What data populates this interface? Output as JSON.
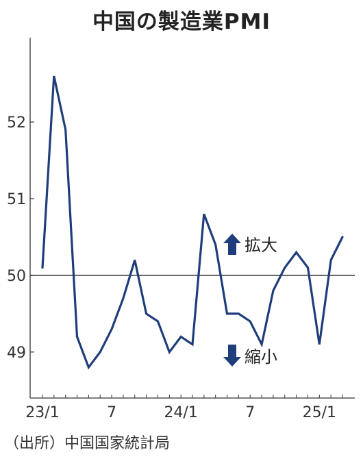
{
  "chart_data": {
    "type": "line",
    "title": "中国の製造業PMI",
    "x": [
      "23/1",
      "23/2",
      "23/3",
      "23/4",
      "23/5",
      "23/6",
      "23/7",
      "23/8",
      "23/9",
      "23/10",
      "23/11",
      "23/12",
      "24/1",
      "24/2",
      "24/3",
      "24/4",
      "24/5",
      "24/6",
      "24/7",
      "24/8",
      "24/9",
      "24/10",
      "24/11",
      "24/12",
      "25/1",
      "25/2",
      "25/3"
    ],
    "xticks": [
      "23/1",
      "7",
      "24/1",
      "7",
      "25/1"
    ],
    "xtick_index": [
      0,
      6,
      12,
      18,
      24
    ],
    "series": [
      {
        "values": [
          50.1,
          52.6,
          51.9,
          49.2,
          48.8,
          49.0,
          49.3,
          49.7,
          50.2,
          49.5,
          49.4,
          49.0,
          49.2,
          49.1,
          50.8,
          50.4,
          49.5,
          49.5,
          49.4,
          49.1,
          49.8,
          50.1,
          50.3,
          50.1,
          49.1,
          50.2,
          50.5
        ]
      }
    ],
    "ylim": [
      48.4,
      53.1
    ],
    "yticks": [
      49,
      50,
      51,
      52
    ],
    "reference_line": 50,
    "line_color": "#1f3d7a",
    "annotations": [
      {
        "text": "拡大",
        "arrow": "up"
      },
      {
        "text": "縮小",
        "arrow": "down"
      }
    ],
    "grid": false
  },
  "source": "（出所）中国国家統計局"
}
